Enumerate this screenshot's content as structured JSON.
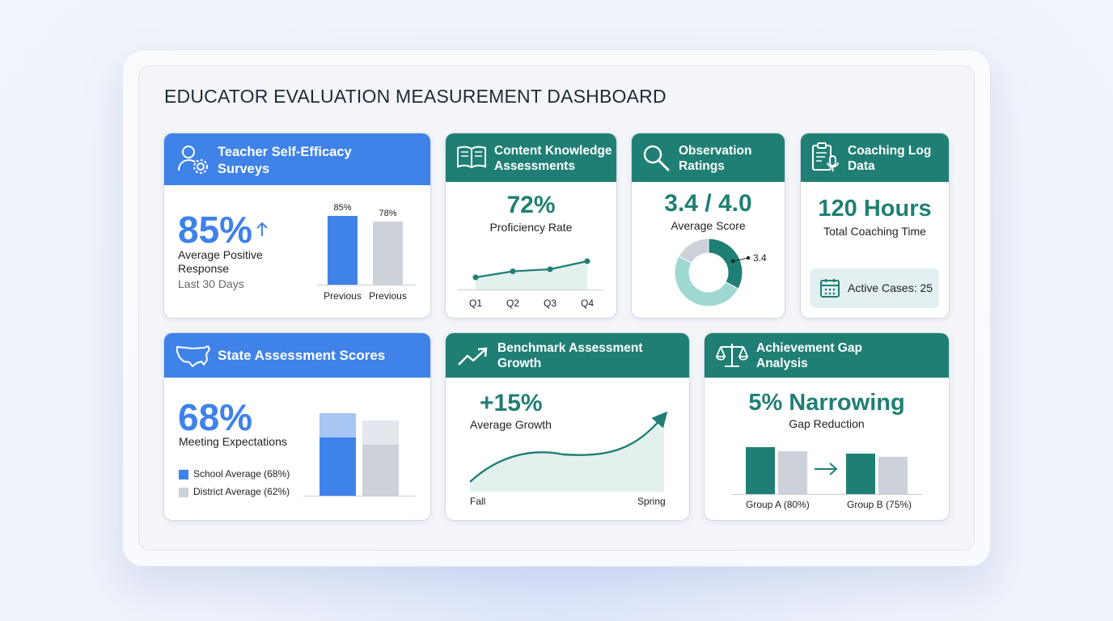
{
  "title": "EDUCATOR EVALUATION MEASUREMENT DASHBOARD",
  "colors": {
    "blue": "#3f82e8",
    "teal": "#207f74",
    "light_teal": "#9fd8d0",
    "gray": "#cdd1d9"
  },
  "cards": {
    "self_efficacy": {
      "title_line1": "Teacher Self-Efficacy",
      "title_line2": "Surveys",
      "icon": "user-gear-icon",
      "value": "85%",
      "label_line1": "Average Positive",
      "label_line2": "Response",
      "period": "Last 30 Days",
      "chart_data": {
        "type": "bar",
        "categories": [
          "Previous",
          "Previous"
        ],
        "values": [
          85,
          78
        ],
        "value_labels": [
          "85%",
          "78%"
        ]
      }
    },
    "content_knowledge": {
      "title_line1": "Content Knowledge",
      "title_line2": "Assessments",
      "icon": "book-icon",
      "value": "72%",
      "label": "Proficiency Rate",
      "chart_data": {
        "type": "area",
        "x": [
          "Q1",
          "Q2",
          "Q3",
          "Q4"
        ],
        "values": [
          66,
          69,
          70,
          74
        ]
      }
    },
    "observation": {
      "title_line1": "Observation",
      "title_line2": "Ratings",
      "icon": "magnifier-icon",
      "value": "3.4 / 4.0",
      "label": "Average Score",
      "annotation": "3.4",
      "chart_data": {
        "type": "pie",
        "slices": [
          {
            "value": 0.33,
            "color": "#207f74"
          },
          {
            "value": 0.5,
            "color": "#9fd8d0"
          },
          {
            "value": 0.17,
            "color": "#cdd1d9"
          }
        ]
      }
    },
    "coaching": {
      "title_line1": "Coaching Log",
      "title_line2": "Data",
      "icon": "clipboard-mic-icon",
      "value": "120 Hours",
      "label": "Total Coaching Time",
      "badge_icon": "calendar-icon",
      "badge": "Active Cases: 25"
    },
    "state": {
      "title": "State Assessment Scores",
      "icon": "usa-map-icon",
      "value": "68%",
      "label": "Meeting Expectations",
      "legend": [
        "School Average (68%)",
        "District Average (62%)"
      ],
      "chart_data": {
        "type": "bar",
        "series": [
          {
            "name": "School Average (68%)",
            "values": [
              68
            ]
          },
          {
            "name": "District Average (62%)",
            "values": [
              62
            ]
          }
        ]
      }
    },
    "benchmark": {
      "title_line1": "Benchmark Assessment",
      "title_line2": "Growth",
      "icon": "trend-up-icon",
      "value": "+15%",
      "label": "Average Growth",
      "chart_data": {
        "type": "area",
        "x_labels": [
          "Fall",
          "Spring"
        ]
      }
    },
    "achievement": {
      "title_line1": "Achievement Gap",
      "title_line2": "Analysis",
      "icon": "scales-icon",
      "value": "5% Narrowing",
      "label": "Gap Reduction",
      "chart_data": {
        "type": "bar",
        "categories": [
          "Group A (80%)",
          "Group B (75%)"
        ]
      }
    }
  }
}
